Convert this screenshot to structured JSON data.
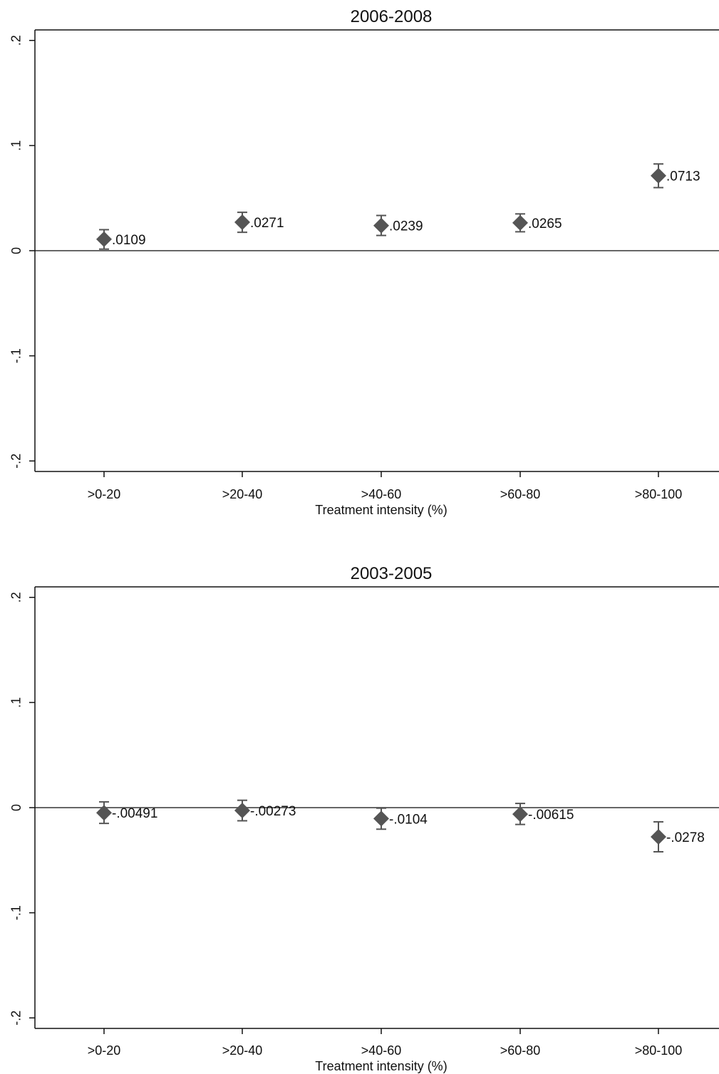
{
  "chart_data": [
    {
      "type": "scatter",
      "title": "2006-2008",
      "xlabel": "Treatment intensity (%)",
      "ylabel": "",
      "categories": [
        ">0-20",
        ">20-40",
        ">40-60",
        ">60-80",
        ">80-100"
      ],
      "values": [
        0.0109,
        0.0271,
        0.0239,
        0.0265,
        0.0713
      ],
      "value_labels": [
        ".0109",
        ".0271",
        ".0239",
        ".0265",
        ".0713"
      ],
      "ci_low": [
        0.0015,
        0.0175,
        0.0145,
        0.018,
        0.06
      ],
      "ci_high": [
        0.02,
        0.0365,
        0.0335,
        0.035,
        0.0825
      ],
      "ylim": [
        -0.21,
        0.21
      ],
      "yticks": [
        -0.2,
        -0.1,
        0,
        0.1,
        0.2
      ],
      "ytick_labels": [
        "-.2",
        "-.1",
        "0",
        ".1",
        ".2"
      ],
      "reference_line_y": 0,
      "marker": "diamond",
      "marker_color": "#555555"
    },
    {
      "type": "scatter",
      "title": "2003-2005",
      "xlabel": "Treatment intensity (%)",
      "ylabel": "",
      "categories": [
        ">0-20",
        ">20-40",
        ">40-60",
        ">60-80",
        ">80-100"
      ],
      "values": [
        -0.00491,
        -0.00273,
        -0.0104,
        -0.00615,
        -0.0278
      ],
      "value_labels": [
        "-.00491",
        "-.00273",
        "-.0104",
        "-.00615",
        "-.0278"
      ],
      "ci_low": [
        -0.015,
        -0.0125,
        -0.0205,
        -0.016,
        -0.042
      ],
      "ci_high": [
        0.0055,
        0.007,
        -0.0005,
        0.004,
        -0.0135
      ],
      "ylim": [
        -0.21,
        0.21
      ],
      "yticks": [
        -0.2,
        -0.1,
        0,
        0.1,
        0.2
      ],
      "ytick_labels": [
        "-.2",
        "-.1",
        "0",
        ".1",
        ".2"
      ],
      "reference_line_y": 0,
      "marker": "diamond",
      "marker_color": "#555555"
    }
  ]
}
